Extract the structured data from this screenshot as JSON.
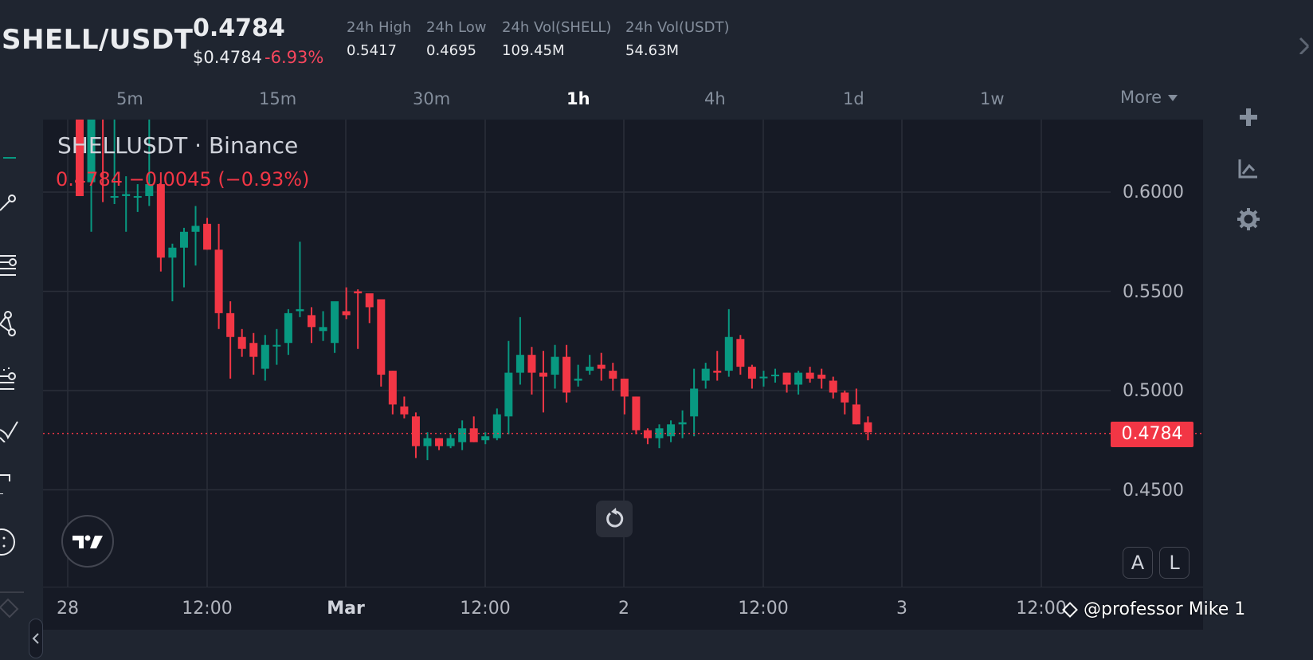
{
  "header": {
    "pair": "SHELL/USDT",
    "last_price": "0.4784",
    "usd_price": "$0.4784",
    "change_pct": "-6.93%",
    "stats": [
      {
        "label": "24h High",
        "value": "0.5417"
      },
      {
        "label": "24h Low",
        "value": "0.4695"
      },
      {
        "label": "24h Vol(SHELL)",
        "value": "109.45M"
      },
      {
        "label": "24h Vol(USDT)",
        "value": "54.63M"
      }
    ]
  },
  "intervals": {
    "items": [
      {
        "label": "5m",
        "active": false
      },
      {
        "label": "15m",
        "active": false
      },
      {
        "label": "30m",
        "active": false
      },
      {
        "label": "1h",
        "active": true
      },
      {
        "label": "4h",
        "active": false
      },
      {
        "label": "1d",
        "active": false
      },
      {
        "label": "1w",
        "active": false
      }
    ],
    "more_label": "More"
  },
  "chart": {
    "symbol_title": "SHELLUSDT · Binance",
    "ohlc_line": "0.4784 −0.0045 (−0.93%)",
    "current_price_tag": "0.4784",
    "y_labels": [
      "0.6000",
      "0.5500",
      "0.5000",
      "0.4500"
    ],
    "x_labels": [
      {
        "label": "28",
        "bold": false
      },
      {
        "label": "12:00",
        "bold": false
      },
      {
        "label": "Mar",
        "bold": true
      },
      {
        "label": "12:00",
        "bold": false
      },
      {
        "label": "2",
        "bold": false
      },
      {
        "label": "12:00",
        "bold": false
      },
      {
        "label": "3",
        "bold": false
      },
      {
        "label": "12:00",
        "bold": false
      }
    ],
    "scale_buttons": [
      "A",
      "L"
    ],
    "colors": {
      "up": "#089981",
      "down": "#f23645",
      "grid": "#2a2e39",
      "bg": "#161a25"
    }
  },
  "watermark": "@professor Mike 1",
  "chart_data": {
    "type": "candlestick",
    "title": "SHELLUSDT · Binance (1h)",
    "ylim": [
      0.42,
      0.64
    ],
    "y_ticks": [
      0.45,
      0.5,
      0.55,
      0.6
    ],
    "x_ticks": [
      "28",
      "12:00",
      "Mar",
      "12:00",
      "2",
      "12:00",
      "3",
      "12:00"
    ],
    "last": 0.4784,
    "candles": [
      {
        "o": 0.64,
        "h": 0.645,
        "l": 0.612,
        "c": 0.598
      },
      {
        "o": 0.605,
        "h": 0.64,
        "l": 0.58,
        "c": 0.64
      },
      {
        "o": 0.64,
        "h": 0.642,
        "l": 0.595,
        "c": 0.638
      },
      {
        "o": 0.598,
        "h": 0.64,
        "l": 0.594,
        "c": 0.598
      },
      {
        "o": 0.598,
        "h": 0.608,
        "l": 0.58,
        "c": 0.599
      },
      {
        "o": 0.598,
        "h": 0.604,
        "l": 0.59,
        "c": 0.598
      },
      {
        "o": 0.598,
        "h": 0.64,
        "l": 0.593,
        "c": 0.604
      },
      {
        "o": 0.604,
        "h": 0.61,
        "l": 0.56,
        "c": 0.567
      },
      {
        "o": 0.567,
        "h": 0.574,
        "l": 0.545,
        "c": 0.572
      },
      {
        "o": 0.572,
        "h": 0.582,
        "l": 0.552,
        "c": 0.58
      },
      {
        "o": 0.58,
        "h": 0.593,
        "l": 0.563,
        "c": 0.583
      },
      {
        "o": 0.584,
        "h": 0.587,
        "l": 0.571,
        "c": 0.571
      },
      {
        "o": 0.571,
        "h": 0.584,
        "l": 0.531,
        "c": 0.539
      },
      {
        "o": 0.539,
        "h": 0.545,
        "l": 0.506,
        "c": 0.527
      },
      {
        "o": 0.527,
        "h": 0.531,
        "l": 0.517,
        "c": 0.521
      },
      {
        "o": 0.524,
        "h": 0.529,
        "l": 0.508,
        "c": 0.517
      },
      {
        "o": 0.511,
        "h": 0.528,
        "l": 0.505,
        "c": 0.523
      },
      {
        "o": 0.523,
        "h": 0.531,
        "l": 0.513,
        "c": 0.523
      },
      {
        "o": 0.524,
        "h": 0.541,
        "l": 0.518,
        "c": 0.539
      },
      {
        "o": 0.54,
        "h": 0.575,
        "l": 0.537,
        "c": 0.541
      },
      {
        "o": 0.538,
        "h": 0.542,
        "l": 0.524,
        "c": 0.532
      },
      {
        "o": 0.53,
        "h": 0.54,
        "l": 0.525,
        "c": 0.532
      },
      {
        "o": 0.524,
        "h": 0.545,
        "l": 0.519,
        "c": 0.545
      },
      {
        "o": 0.54,
        "h": 0.552,
        "l": 0.536,
        "c": 0.538
      },
      {
        "o": 0.55,
        "h": 0.551,
        "l": 0.521,
        "c": 0.549
      },
      {
        "o": 0.549,
        "h": 0.548,
        "l": 0.534,
        "c": 0.542
      },
      {
        "o": 0.546,
        "h": 0.542,
        "l": 0.502,
        "c": 0.508
      },
      {
        "o": 0.51,
        "h": 0.51,
        "l": 0.488,
        "c": 0.493
      },
      {
        "o": 0.492,
        "h": 0.497,
        "l": 0.486,
        "c": 0.488
      },
      {
        "o": 0.487,
        "h": 0.489,
        "l": 0.466,
        "c": 0.472
      },
      {
        "o": 0.472,
        "h": 0.479,
        "l": 0.465,
        "c": 0.476
      },
      {
        "o": 0.476,
        "h": 0.475,
        "l": 0.47,
        "c": 0.472
      },
      {
        "o": 0.472,
        "h": 0.478,
        "l": 0.471,
        "c": 0.476
      },
      {
        "o": 0.474,
        "h": 0.485,
        "l": 0.47,
        "c": 0.481
      },
      {
        "o": 0.481,
        "h": 0.487,
        "l": 0.474,
        "c": 0.474
      },
      {
        "o": 0.475,
        "h": 0.479,
        "l": 0.473,
        "c": 0.477
      },
      {
        "o": 0.476,
        "h": 0.491,
        "l": 0.475,
        "c": 0.488
      },
      {
        "o": 0.487,
        "h": 0.525,
        "l": 0.478,
        "c": 0.509
      },
      {
        "o": 0.509,
        "h": 0.537,
        "l": 0.503,
        "c": 0.518
      },
      {
        "o": 0.518,
        "h": 0.522,
        "l": 0.498,
        "c": 0.509
      },
      {
        "o": 0.509,
        "h": 0.52,
        "l": 0.489,
        "c": 0.507
      },
      {
        "o": 0.508,
        "h": 0.523,
        "l": 0.501,
        "c": 0.517
      },
      {
        "o": 0.517,
        "h": 0.523,
        "l": 0.494,
        "c": 0.499
      },
      {
        "o": 0.505,
        "h": 0.513,
        "l": 0.502,
        "c": 0.506
      },
      {
        "o": 0.51,
        "h": 0.518,
        "l": 0.508,
        "c": 0.512
      },
      {
        "o": 0.513,
        "h": 0.519,
        "l": 0.505,
        "c": 0.511
      },
      {
        "o": 0.51,
        "h": 0.514,
        "l": 0.5,
        "c": 0.506
      },
      {
        "o": 0.506,
        "h": 0.504,
        "l": 0.488,
        "c": 0.497
      },
      {
        "o": 0.497,
        "h": 0.497,
        "l": 0.478,
        "c": 0.48
      },
      {
        "o": 0.48,
        "h": 0.481,
        "l": 0.473,
        "c": 0.476
      },
      {
        "o": 0.476,
        "h": 0.483,
        "l": 0.471,
        "c": 0.481
      },
      {
        "o": 0.477,
        "h": 0.485,
        "l": 0.474,
        "c": 0.483
      },
      {
        "o": 0.483,
        "h": 0.49,
        "l": 0.476,
        "c": 0.484
      },
      {
        "o": 0.487,
        "h": 0.511,
        "l": 0.477,
        "c": 0.501
      },
      {
        "o": 0.505,
        "h": 0.514,
        "l": 0.501,
        "c": 0.511
      },
      {
        "o": 0.51,
        "h": 0.52,
        "l": 0.505,
        "c": 0.509
      },
      {
        "o": 0.51,
        "h": 0.541,
        "l": 0.507,
        "c": 0.527
      },
      {
        "o": 0.526,
        "h": 0.528,
        "l": 0.508,
        "c": 0.512
      },
      {
        "o": 0.512,
        "h": 0.513,
        "l": 0.501,
        "c": 0.506
      },
      {
        "o": 0.507,
        "h": 0.51,
        "l": 0.502,
        "c": 0.507
      },
      {
        "o": 0.508,
        "h": 0.511,
        "l": 0.504,
        "c": 0.508
      },
      {
        "o": 0.509,
        "h": 0.509,
        "l": 0.499,
        "c": 0.503
      },
      {
        "o": 0.503,
        "h": 0.51,
        "l": 0.498,
        "c": 0.509
      },
      {
        "o": 0.509,
        "h": 0.512,
        "l": 0.504,
        "c": 0.506
      },
      {
        "o": 0.508,
        "h": 0.511,
        "l": 0.501,
        "c": 0.506
      },
      {
        "o": 0.505,
        "h": 0.507,
        "l": 0.496,
        "c": 0.499
      },
      {
        "o": 0.499,
        "h": 0.5,
        "l": 0.488,
        "c": 0.494
      },
      {
        "o": 0.493,
        "h": 0.501,
        "l": 0.484,
        "c": 0.483
      },
      {
        "o": 0.484,
        "h": 0.487,
        "l": 0.475,
        "c": 0.479
      }
    ]
  }
}
